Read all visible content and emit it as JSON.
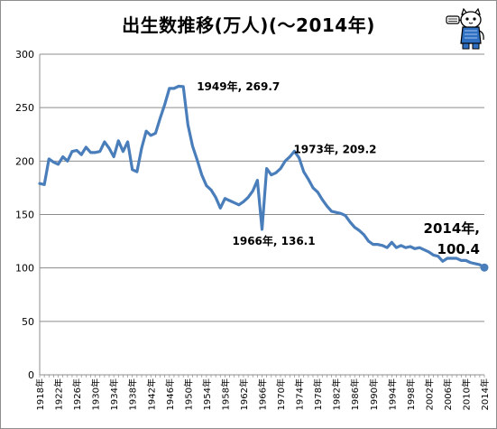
{
  "chart_data": {
    "type": "line",
    "title": "出生数推移(万人)(〜2014年)",
    "xlabel": "",
    "ylabel": "",
    "ylim": [
      0,
      300
    ],
    "yticks": [
      0,
      50,
      100,
      150,
      200,
      250,
      300
    ],
    "grid": true,
    "legend": "none",
    "x_tick_labels": [
      "1918年",
      "1922年",
      "1926年",
      "1930年",
      "1934年",
      "1938年",
      "1942年",
      "1946年",
      "1950年",
      "1954年",
      "1958年",
      "1962年",
      "1966年",
      "1970年",
      "1974年",
      "1978年",
      "1982年",
      "1986年",
      "1990年",
      "1994年",
      "1998年",
      "2002年",
      "2006年",
      "2010年",
      "2014年"
    ],
    "series": [
      {
        "color": "#4a7ebb",
        "x": [
          1918,
          1919,
          1920,
          1921,
          1922,
          1923,
          1924,
          1925,
          1926,
          1927,
          1928,
          1929,
          1930,
          1931,
          1932,
          1933,
          1934,
          1935,
          1936,
          1937,
          1938,
          1939,
          1940,
          1941,
          1942,
          1943,
          1944,
          1945,
          1946,
          1947,
          1948,
          1949,
          1950,
          1951,
          1952,
          1953,
          1954,
          1955,
          1956,
          1957,
          1958,
          1959,
          1960,
          1961,
          1962,
          1963,
          1964,
          1965,
          1966,
          1967,
          1968,
          1969,
          1970,
          1971,
          1972,
          1973,
          1974,
          1975,
          1976,
          1977,
          1978,
          1979,
          1980,
          1981,
          1982,
          1983,
          1984,
          1985,
          1986,
          1987,
          1988,
          1989,
          1990,
          1991,
          1992,
          1993,
          1994,
          1995,
          1996,
          1997,
          1998,
          1999,
          2000,
          2001,
          2002,
          2003,
          2004,
          2005,
          2006,
          2007,
          2008,
          2009,
          2010,
          2011,
          2012,
          2013,
          2014
        ],
        "values": [
          179,
          178,
          202,
          199,
          197,
          204,
          200,
          209,
          210,
          206,
          213,
          208,
          208,
          209,
          218,
          212,
          204,
          219,
          209,
          218,
          192,
          190,
          212,
          228,
          224,
          226,
          240,
          253,
          268,
          268,
          270,
          269.7,
          234,
          214,
          201,
          187,
          177,
          173,
          166,
          156,
          165,
          163,
          161,
          159,
          162,
          166,
          172,
          182,
          136.1,
          193,
          187,
          189,
          193,
          200,
          204,
          209.2,
          203,
          190,
          183,
          175,
          171,
          164,
          158,
          153,
          152,
          151,
          149,
          143,
          138,
          135,
          131,
          125,
          122,
          122,
          121,
          119,
          124,
          119,
          121,
          119,
          120,
          118,
          119,
          117,
          115,
          112,
          111,
          106.2,
          109,
          109,
          109,
          107,
          107,
          105,
          104,
          103,
          100.4
        ]
      }
    ],
    "annotations": [
      {
        "text": "1949年, 269.7",
        "x": 1949,
        "y": 269.7
      },
      {
        "text": "1966年, 136.1",
        "x": 1966,
        "y": 136.1
      },
      {
        "text": "1973年, 209.2",
        "x": 1973,
        "y": 209.2
      },
      {
        "text_line1": "2014年,",
        "text_line2": "100.4",
        "x": 2014,
        "y": 100.4
      }
    ]
  },
  "mascot": {
    "icon": "cat-mascot-icon"
  }
}
